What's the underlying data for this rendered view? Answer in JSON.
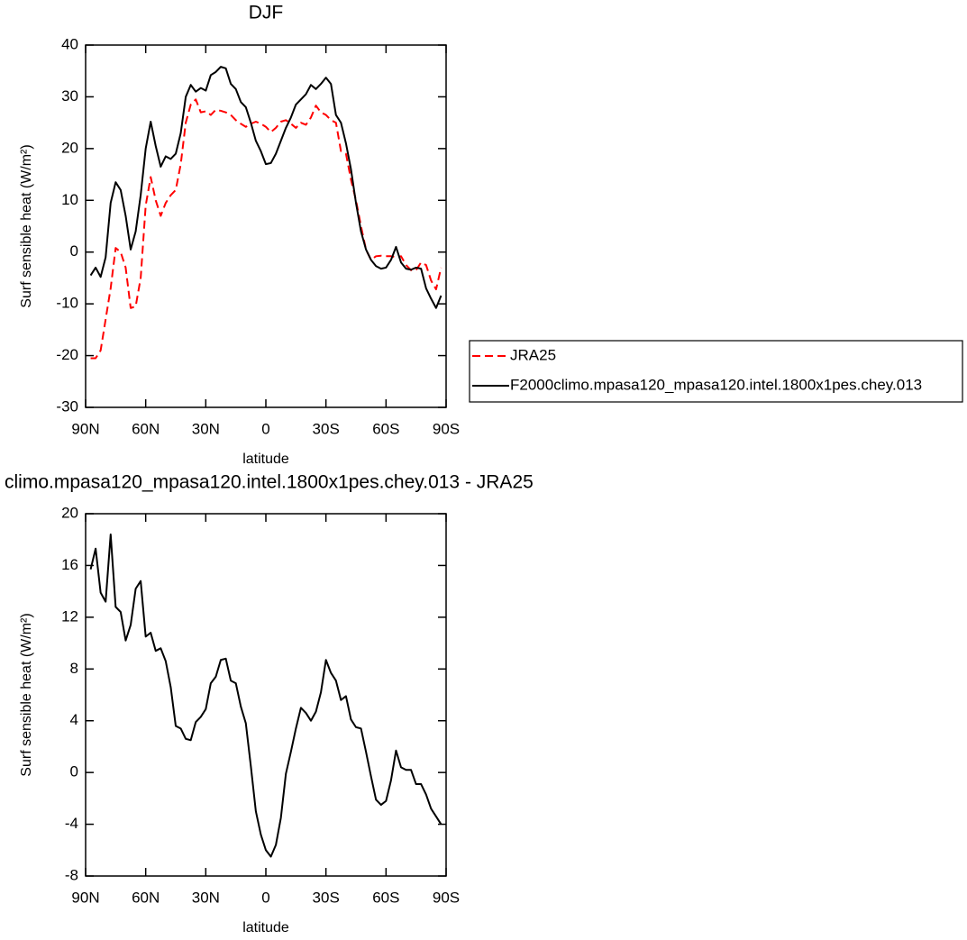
{
  "chart_data": [
    {
      "type": "line",
      "title": "DJF",
      "xlabel": "latitude",
      "ylabel": "Surf sensible heat (W/m²)",
      "x": [
        87.5,
        85,
        82.5,
        80,
        77.5,
        75,
        72.5,
        70,
        67.5,
        65,
        62.5,
        60,
        57.5,
        55,
        52.5,
        50,
        47.5,
        45,
        42.5,
        40,
        37.5,
        35,
        32.5,
        30,
        27.5,
        25,
        22.5,
        20,
        17.5,
        15,
        12.5,
        10,
        7.5,
        5,
        2.5,
        0,
        -2.5,
        -5,
        -7.5,
        -10,
        -12.5,
        -15,
        -17.5,
        -20,
        -22.5,
        -25,
        -27.5,
        -30,
        -32.5,
        -35,
        -37.5,
        -40,
        -42.5,
        -45,
        -47.5,
        -50,
        -52.5,
        -55,
        -57.5,
        -60,
        -62.5,
        -65,
        -67.5,
        -70,
        -72.5,
        -75,
        -77.5,
        -80,
        -82.5,
        -85,
        -87.5
      ],
      "series": [
        {
          "name": "JRA25",
          "color": "#ff0000",
          "line_style": "dashed",
          "values": [
            -20.5,
            -20.5,
            -19,
            -13,
            -7,
            0.8,
            0,
            -3,
            -10.8,
            -10.5,
            -5,
            9,
            14.5,
            10,
            7,
            9.5,
            11,
            12,
            17,
            25,
            28.5,
            29.5,
            27,
            27.2,
            26.5,
            27.5,
            27.3,
            27,
            26.5,
            25.5,
            24.8,
            24.2,
            24.8,
            25.2,
            24.8,
            24.2,
            23.2,
            24,
            25.2,
            25.5,
            24.8,
            24,
            25,
            24.6,
            26,
            28.3,
            27,
            26.5,
            25.5,
            25,
            19.5,
            19,
            14,
            10,
            5,
            0.5,
            -1.5,
            -0.8,
            -0.7,
            -0.8,
            -0.8,
            -1,
            -0.8,
            -2.5,
            -3.5,
            -3.5,
            -2,
            -2.5,
            -5.5,
            -7.2,
            -3
          ]
        },
        {
          "name": "F2000climo.mpasa120_mpasa120.intel.1800x1pes.chey.013",
          "color": "#000000",
          "line_style": "solid",
          "values": [
            -4.5,
            -3,
            -4.8,
            -1,
            9.5,
            13.5,
            12,
            7,
            0.5,
            4,
            11,
            20,
            25.2,
            20.5,
            16.5,
            18.5,
            18,
            19,
            23,
            30,
            32.3,
            31,
            31.7,
            31.2,
            34.2,
            34.8,
            35.8,
            35.5,
            32.5,
            31.5,
            29,
            28,
            25,
            21.5,
            19.5,
            17,
            17.2,
            19,
            21.5,
            24,
            26,
            28.5,
            29.5,
            30.5,
            32.3,
            31.5,
            32.5,
            33.7,
            32.5,
            26.5,
            25,
            21,
            16,
            9.5,
            4,
            0.5,
            -1.5,
            -2.7,
            -3.2,
            -3,
            -1.5,
            1,
            -2,
            -3.2,
            -3.4,
            -3,
            -3.2,
            -7,
            -9,
            -10.8,
            -8.4
          ]
        }
      ],
      "xlim": [
        90,
        -90
      ],
      "xticks": [
        {
          "value": 90,
          "label": "90N"
        },
        {
          "value": 60,
          "label": "60N"
        },
        {
          "value": 30,
          "label": "30N"
        },
        0,
        {
          "value": -30,
          "label": "30S"
        },
        {
          "value": -60,
          "label": "60S"
        },
        {
          "value": -90,
          "label": "90S"
        }
      ],
      "ylim": [
        -30,
        40
      ],
      "yticks": [
        -30,
        -20,
        -10,
        0,
        10,
        20,
        30,
        40
      ],
      "legend": "right"
    },
    {
      "type": "line",
      "title": "climo.mpasa120_mpasa120.intel.1800x1pes.chey.013 - JRA25",
      "xlabel": "latitude",
      "ylabel": "Surf sensible heat (W/m²)",
      "x": [
        87.5,
        85,
        82.5,
        80,
        77.5,
        75,
        72.5,
        70,
        67.5,
        65,
        62.5,
        60,
        57.5,
        55,
        52.5,
        50,
        47.5,
        45,
        42.5,
        40,
        37.5,
        35,
        32.5,
        30,
        27.5,
        25,
        22.5,
        20,
        17.5,
        15,
        12.5,
        10,
        7.5,
        5,
        2.5,
        0,
        -2.5,
        -5,
        -7.5,
        -10,
        -12.5,
        -15,
        -17.5,
        -20,
        -22.5,
        -25,
        -27.5,
        -30,
        -32.5,
        -35,
        -37.5,
        -40,
        -42.5,
        -45,
        -47.5,
        -50,
        -52.5,
        -55,
        -57.5,
        -60,
        -62.5,
        -65,
        -67.5,
        -70,
        -72.5,
        -75,
        -77.5,
        -80,
        -82.5,
        -85,
        -87.5
      ],
      "values": [
        15.7,
        17.3,
        13.9,
        13.2,
        18.4,
        12.8,
        12.4,
        10.2,
        11.4,
        14.2,
        14.8,
        10.5,
        10.8,
        9.4,
        9.6,
        8.6,
        6.6,
        3.6,
        3.4,
        2.6,
        2.5,
        3.9,
        4.3,
        4.9,
        6.9,
        7.4,
        8.7,
        8.8,
        7.1,
        6.9,
        5.1,
        3.8,
        0.5,
        -3,
        -4.8,
        -6,
        -6.5,
        -5.6,
        -3.5,
        -0.1,
        1.6,
        3.4,
        5,
        4.6,
        4,
        4.7,
        6.2,
        8.7,
        7.7,
        7.1,
        5.6,
        5.9,
        4.1,
        3.5,
        3.4,
        1.6,
        -0.3,
        -2.1,
        -2.5,
        -2.2,
        -0.6,
        1.7,
        0.4,
        0.2,
        0.2,
        -0.9,
        -0.9,
        -1.7,
        -2.8,
        -3.4,
        -4
      ],
      "color": "#000000",
      "xlim": [
        90,
        -90
      ],
      "xticks": [
        {
          "value": 90,
          "label": "90N"
        },
        {
          "value": 60,
          "label": "60N"
        },
        {
          "value": 30,
          "label": "30N"
        },
        0,
        {
          "value": -30,
          "label": "30S"
        },
        {
          "value": -60,
          "label": "60S"
        },
        {
          "value": -90,
          "label": "90S"
        }
      ],
      "ylim": [
        -8,
        20
      ],
      "yticks": [
        -8,
        -4,
        0,
        4,
        8,
        12,
        16,
        20
      ]
    }
  ]
}
